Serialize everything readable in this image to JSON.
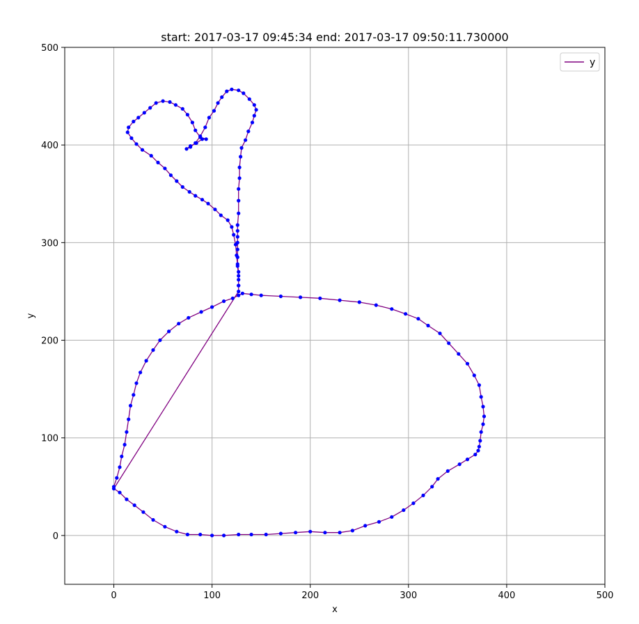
{
  "chart_data": {
    "type": "line",
    "title": "start: 2017-03-17 09:45:34 end: 2017-03-17 09:50:11.730000",
    "xlabel": "x",
    "ylabel": "y",
    "xlim": [
      -50,
      500
    ],
    "ylim": [
      -50,
      500
    ],
    "xticks": [
      0,
      100,
      200,
      300,
      400,
      500
    ],
    "yticks": [
      0,
      100,
      200,
      300,
      400,
      500
    ],
    "grid": true,
    "legend_position": "top-right",
    "line_color": "#800080",
    "marker_color": "#0000ff",
    "series": [
      {
        "name": "y",
        "points": [
          [
            0,
            50
          ],
          [
            3,
            59
          ],
          [
            6,
            70
          ],
          [
            8,
            81
          ],
          [
            11,
            93
          ],
          [
            13,
            106
          ],
          [
            15,
            119
          ],
          [
            17,
            133
          ],
          [
            20,
            144
          ],
          [
            23,
            156
          ],
          [
            27,
            167
          ],
          [
            33,
            179
          ],
          [
            40,
            190
          ],
          [
            47,
            200
          ],
          [
            56,
            209
          ],
          [
            66,
            217
          ],
          [
            76,
            223
          ],
          [
            89,
            229
          ],
          [
            100,
            234
          ],
          [
            112,
            240
          ],
          [
            121,
            243
          ],
          [
            127,
            246
          ],
          [
            131,
            248
          ],
          [
            140,
            247
          ],
          [
            150,
            246
          ],
          [
            170,
            245
          ],
          [
            190,
            244
          ],
          [
            210,
            243
          ],
          [
            230,
            241
          ],
          [
            250,
            239
          ],
          [
            267,
            236
          ],
          [
            283,
            232
          ],
          [
            297,
            227
          ],
          [
            310,
            222
          ],
          [
            320,
            215
          ],
          [
            332,
            207
          ],
          [
            341,
            197
          ],
          [
            351,
            186
          ],
          [
            360,
            176
          ],
          [
            367,
            164
          ],
          [
            372,
            154
          ],
          [
            374,
            142
          ],
          [
            376,
            132
          ],
          [
            377,
            122
          ],
          [
            376,
            114
          ],
          [
            374,
            106
          ],
          [
            373,
            97
          ],
          [
            372,
            91
          ],
          [
            371,
            87
          ],
          [
            368,
            83
          ],
          [
            360,
            78
          ],
          [
            352,
            73
          ],
          [
            340,
            66
          ],
          [
            330,
            58
          ],
          [
            324,
            50
          ],
          [
            315,
            41
          ],
          [
            305,
            33
          ],
          [
            295,
            26
          ],
          [
            283,
            19
          ],
          [
            270,
            14
          ],
          [
            256,
            10
          ],
          [
            243,
            5
          ],
          [
            230,
            3
          ],
          [
            215,
            3
          ],
          [
            200,
            4
          ],
          [
            185,
            3
          ],
          [
            170,
            2
          ],
          [
            155,
            1
          ],
          [
            140,
            1
          ],
          [
            127,
            1
          ],
          [
            112,
            0
          ],
          [
            100,
            0
          ],
          [
            88,
            1
          ],
          [
            75,
            1
          ],
          [
            64,
            4
          ],
          [
            52,
            9
          ],
          [
            40,
            16
          ],
          [
            30,
            24
          ],
          [
            21,
            31
          ],
          [
            13,
            37
          ],
          [
            6,
            44
          ],
          [
            0,
            48
          ],
          [
            127,
            250
          ],
          [
            127,
            256
          ],
          [
            127,
            262
          ],
          [
            127,
            270
          ],
          [
            126,
            278
          ],
          [
            126,
            285
          ],
          [
            126,
            293
          ],
          [
            126,
            300
          ],
          [
            126,
            306
          ],
          [
            126,
            312
          ],
          [
            126,
            318
          ],
          [
            127,
            330
          ],
          [
            127,
            343
          ],
          [
            127,
            355
          ],
          [
            128,
            366
          ],
          [
            128,
            377
          ],
          [
            129,
            388
          ],
          [
            130,
            397
          ],
          [
            134,
            405
          ],
          [
            137,
            414
          ],
          [
            141,
            423
          ],
          [
            143,
            430
          ],
          [
            145,
            436
          ],
          [
            143,
            441
          ],
          [
            138,
            447
          ],
          [
            132,
            453
          ],
          [
            127,
            456
          ],
          [
            120,
            457
          ],
          [
            115,
            455
          ],
          [
            110,
            449
          ],
          [
            106,
            443
          ],
          [
            102,
            435
          ],
          [
            97,
            428
          ],
          [
            93,
            418
          ],
          [
            88,
            409
          ],
          [
            83,
            402
          ],
          [
            78,
            398
          ],
          [
            74,
            396
          ],
          [
            78,
            399
          ],
          [
            84,
            402
          ],
          [
            90,
            406
          ],
          [
            94,
            406
          ],
          [
            88,
            408
          ],
          [
            83,
            415
          ],
          [
            80,
            423
          ],
          [
            75,
            431
          ],
          [
            70,
            437
          ],
          [
            63,
            441
          ],
          [
            57,
            444
          ],
          [
            50,
            445
          ],
          [
            43,
            443
          ],
          [
            37,
            438
          ],
          [
            31,
            433
          ],
          [
            25,
            428
          ],
          [
            20,
            424
          ],
          [
            15,
            418
          ],
          [
            14,
            413
          ],
          [
            18,
            407
          ],
          [
            23,
            401
          ],
          [
            29,
            395
          ],
          [
            38,
            389
          ],
          [
            45,
            382
          ],
          [
            52,
            376
          ],
          [
            58,
            369
          ],
          [
            64,
            363
          ],
          [
            70,
            357
          ],
          [
            77,
            352
          ],
          [
            83,
            348
          ],
          [
            90,
            344
          ],
          [
            96,
            340
          ],
          [
            103,
            334
          ],
          [
            109,
            328
          ],
          [
            116,
            323
          ],
          [
            120,
            316
          ],
          [
            122,
            308
          ],
          [
            124,
            298
          ],
          [
            125,
            287
          ],
          [
            126,
            276
          ],
          [
            127,
            266
          ],
          [
            127,
            256
          ]
        ]
      }
    ]
  }
}
